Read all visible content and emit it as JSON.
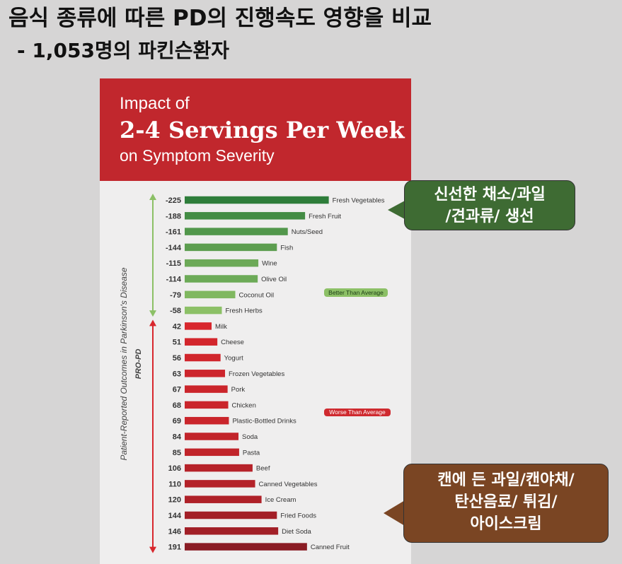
{
  "slide": {
    "title": "음식 종류에 따른 PD의 진행속도 영향을 비교",
    "subtitle": " - 1,053명의 파킨슨환자"
  },
  "banner": {
    "line1": "Impact of",
    "line2": "2-4 Servings Per Week",
    "line3": "on Symptom Severity"
  },
  "axis": {
    "ylabel": "Patient-Reported Outcomes in Parkinson's Disease",
    "ysublabel": "PRO-PD"
  },
  "callouts": {
    "green": {
      "lines": [
        "신선한 채소/과일",
        "/견과류/ 생선"
      ]
    },
    "brown": {
      "lines": [
        "캔에 든 과일/캔야채/",
        "탄산음료/ 튀김/",
        "아이스크림"
      ]
    }
  },
  "chart_data": {
    "type": "bar",
    "orientation": "horizontal",
    "title": "Impact of 2-4 Servings Per Week on Symptom Severity",
    "ylabel": "Patient-Reported Outcomes in Parkinson's Disease",
    "categories": [
      "Fresh Vegetables",
      "Fresh Fruit",
      "Nuts/Seed",
      "Fish",
      "Wine",
      "Olive Oil",
      "Coconut Oil",
      "Fresh Herbs",
      "Milk",
      "Cheese",
      "Yogurt",
      "Frozen Vegetables",
      "Pork",
      "Chicken",
      "Plastic-Bottled Drinks",
      "Soda",
      "Pasta",
      "Beef",
      "Canned Vegetables",
      "Ice Cream",
      "Fried Foods",
      "Diet Soda",
      "Canned Fruit"
    ],
    "values": [
      -225,
      -188,
      -161,
      -144,
      -115,
      -114,
      -79,
      -58,
      42,
      51,
      56,
      63,
      67,
      68,
      69,
      84,
      85,
      106,
      110,
      120,
      144,
      146,
      191
    ],
    "legend": [
      {
        "label": "Better Than Average",
        "color": "#8cc066"
      },
      {
        "label": "Worse Than Average",
        "color": "#cf2a2f"
      }
    ],
    "colors": {
      "better_dark": "#2e7d3a",
      "better_light": "#8cc066",
      "worse_light": "#d8272d",
      "worse_dark": "#8a1c24"
    }
  }
}
